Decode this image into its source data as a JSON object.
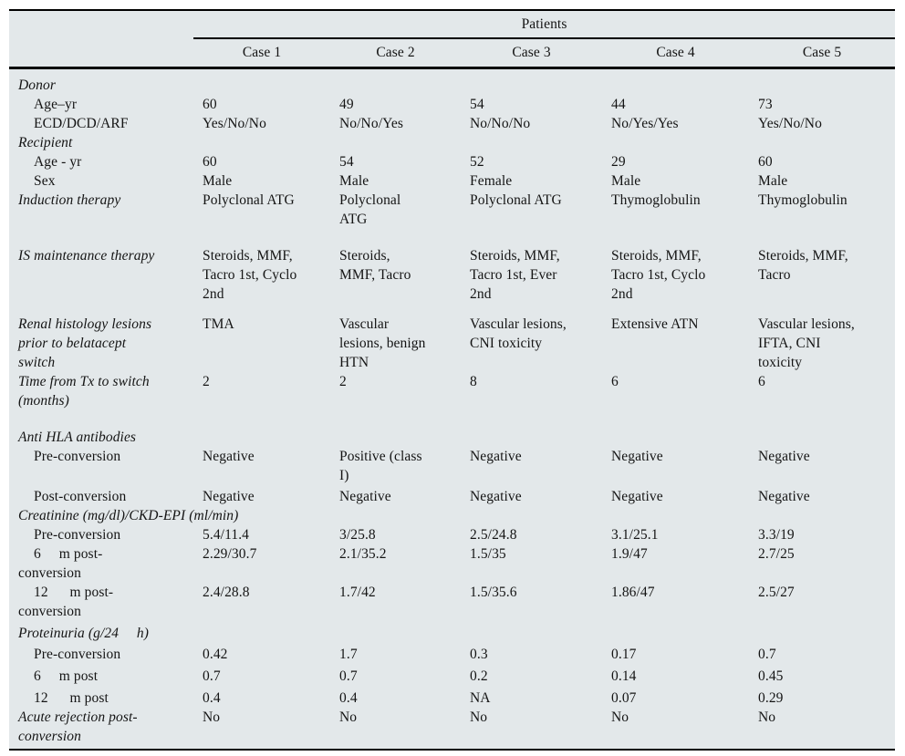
{
  "table": {
    "spanner": "Patients",
    "columns": [
      "Case 1",
      "Case 2",
      "Case 3",
      "Case 4",
      "Case 5"
    ],
    "rows": [
      {
        "label": "Donor",
        "kind": "section",
        "values": [
          "",
          "",
          "",
          "",
          ""
        ]
      },
      {
        "label": "Age–yr",
        "kind": "item",
        "values": [
          "60",
          "49",
          "54",
          "44",
          "73"
        ]
      },
      {
        "label": "ECD/DCD/ARF",
        "kind": "item",
        "values": [
          "Yes/No/No",
          "No/No/Yes",
          "No/No/No",
          "No/Yes/Yes",
          "Yes/No/No"
        ]
      },
      {
        "label": "Recipient",
        "kind": "section",
        "values": [
          "",
          "",
          "",
          "",
          ""
        ]
      },
      {
        "label": "Age - yr",
        "kind": "item",
        "values": [
          "60",
          "54",
          "52",
          "29",
          "60"
        ]
      },
      {
        "label": "Sex",
        "kind": "item",
        "values": [
          "Male",
          "Male",
          "Female",
          "Male",
          "Male"
        ]
      },
      {
        "label": "Induction therapy",
        "kind": "section",
        "values": [
          "Polyclonal ATG",
          "Polyclonal\nATG",
          "Polyclonal ATG",
          "Thymoglobulin",
          "Thymoglobulin"
        ]
      },
      {
        "label": "IS maintenance therapy",
        "kind": "section",
        "values": [
          "Steroids, MMF,\nTacro 1st, Cyclo\n2nd",
          "Steroids,\nMMF, Tacro",
          "Steroids, MMF,\nTacro 1st, Ever\n2nd",
          "Steroids, MMF,\nTacro 1st, Cyclo\n2nd",
          "Steroids, MMF,\nTacro"
        ]
      },
      {
        "label": "Renal histology lesions\nprior to belatacept\nswitch",
        "kind": "section",
        "values": [
          "TMA",
          "Vascular\nlesions, benign\nHTN",
          "Vascular lesions,\nCNI toxicity",
          "Extensive ATN",
          "Vascular lesions,\nIFTA, CNI\ntoxicity"
        ]
      },
      {
        "label": "Time from Tx to switch\n(months)",
        "kind": "section",
        "values": [
          "2",
          "2",
          "8",
          "6",
          "6"
        ]
      },
      {
        "label": "Anti HLA antibodies",
        "kind": "section",
        "values": [
          "",
          "",
          "",
          "",
          ""
        ]
      },
      {
        "label": "Pre-conversion",
        "kind": "item",
        "values": [
          "Negative",
          "Positive (class\nI)",
          "Negative",
          "Negative",
          "Negative"
        ]
      },
      {
        "label": "Post-conversion",
        "kind": "item",
        "values": [
          "Negative",
          "Negative",
          "Negative",
          "Negative",
          "Negative"
        ]
      },
      {
        "label": "Creatinine (mg/dl)/CKD-EPI (ml/min)",
        "kind": "section",
        "values": [
          "",
          "",
          "",
          "",
          ""
        ]
      },
      {
        "label": "Pre-conversion",
        "kind": "item",
        "values": [
          "5.4/11.4",
          "3/25.8",
          "2.5/24.8",
          "3.1/25.1",
          "3.3/19"
        ]
      },
      {
        "label": "6     m post-\nconversion",
        "kind": "item",
        "values": [
          "2.29/30.7",
          "2.1/35.2",
          "1.5/35",
          "1.9/47",
          "2.7/25"
        ]
      },
      {
        "label": "12      m post-\nconversion",
        "kind": "item",
        "values": [
          "2.4/28.8",
          "1.7/42",
          "1.5/35.6",
          "1.86/47",
          "2.5/27"
        ]
      },
      {
        "label": "Proteinuria (g/24     h)",
        "kind": "section",
        "values": [
          "",
          "",
          "",
          "",
          ""
        ]
      },
      {
        "label": "Pre-conversion",
        "kind": "item",
        "values": [
          "0.42",
          "1.7",
          "0.3",
          "0.17",
          "0.7"
        ]
      },
      {
        "label": "6     m post",
        "kind": "item",
        "values": [
          "0.7",
          "0.7",
          "0.2",
          "0.14",
          "0.45"
        ]
      },
      {
        "label": "12      m post",
        "kind": "item",
        "values": [
          "0.4",
          "0.4",
          "NA",
          "0.07",
          "0.29"
        ]
      },
      {
        "label": "Acute rejection post-\nconversion",
        "kind": "section",
        "values": [
          "No",
          "No",
          "No",
          "No",
          "No"
        ]
      }
    ]
  },
  "colors": {
    "table_background": "#e3e8ea",
    "rule": "#000000",
    "text": "#141414"
  }
}
